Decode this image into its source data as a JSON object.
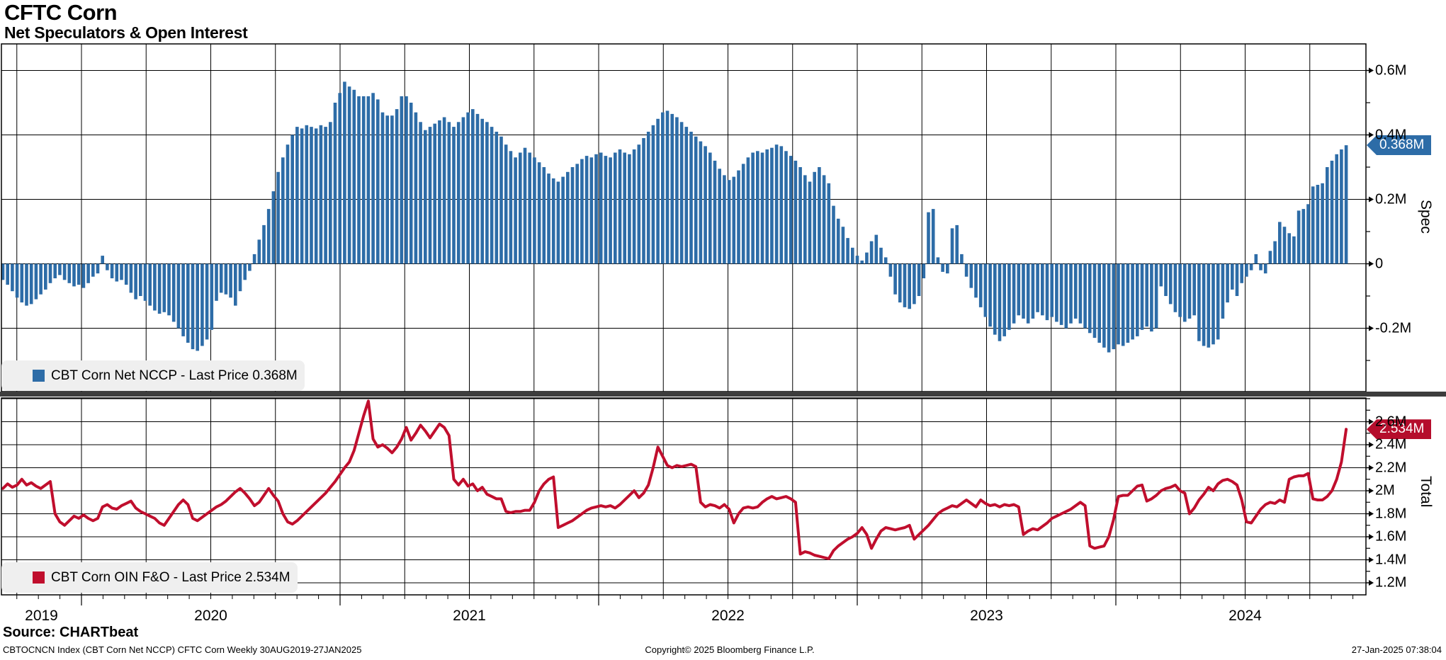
{
  "header": {
    "title": "CFTC Corn",
    "subtitle": "Net Speculators & Open Interest"
  },
  "source_label": "Source: CHARTbeat",
  "footer": {
    "left": "CBTOCNCN Index (CBT Corn Net NCCP) CFTC Corn  Weekly 30AUG2019-27JAN2025",
    "center": "Copyright© 2025 Bloomberg Finance L.P.",
    "right": "27-Jan-2025 07:38:04"
  },
  "colors": {
    "bar_blue": "#2d6ca7",
    "line_red": "#c00e2d",
    "tag_blue": "#2d6ca7",
    "tag_red": "#b50d2c",
    "legend_bg": "#efefef",
    "divider_gray": "#3d3d3d",
    "grid_black": "#000000"
  },
  "x_axis": {
    "years": [
      "2019",
      "2020",
      "2021",
      "2022",
      "2023",
      "2024"
    ],
    "frequency": "Weekly",
    "range": "30AUG2019-27JAN2025"
  },
  "chart_data": [
    {
      "type": "bar",
      "name": "CBT Corn Net NCCP",
      "legend": "CBT Corn Net NCCP - Last Price 0.368M",
      "last_price_tag": "0.368M",
      "ylabel": "Spec",
      "ylim": [
        -0.4,
        0.68
      ],
      "grid": true,
      "ytick_labels": [
        "0.6M",
        "0.4M",
        "0.2M",
        "0",
        "-0.2M"
      ],
      "ytick_values": [
        0.6,
        0.4,
        0.2,
        0,
        -0.2
      ],
      "minor_tick_values": [
        0.5,
        0.3,
        0.1,
        -0.1,
        -0.3
      ],
      "values": [
        -0.05,
        -0.065,
        -0.085,
        -0.105,
        -0.12,
        -0.13,
        -0.125,
        -0.11,
        -0.095,
        -0.08,
        -0.06,
        -0.045,
        -0.035,
        -0.05,
        -0.06,
        -0.07,
        -0.065,
        -0.075,
        -0.06,
        -0.04,
        -0.03,
        0.025,
        -0.02,
        -0.045,
        -0.055,
        -0.05,
        -0.065,
        -0.09,
        -0.11,
        -0.1,
        -0.115,
        -0.13,
        -0.145,
        -0.155,
        -0.15,
        -0.16,
        -0.18,
        -0.2,
        -0.225,
        -0.245,
        -0.265,
        -0.27,
        -0.255,
        -0.235,
        -0.205,
        -0.115,
        -0.09,
        -0.095,
        -0.105,
        -0.13,
        -0.085,
        -0.05,
        -0.022,
        0.03,
        0.075,
        0.12,
        0.17,
        0.225,
        0.285,
        0.33,
        0.37,
        0.4,
        0.425,
        0.42,
        0.43,
        0.425,
        0.42,
        0.43,
        0.425,
        0.44,
        0.5,
        0.53,
        0.565,
        0.55,
        0.54,
        0.52,
        0.52,
        0.52,
        0.53,
        0.51,
        0.47,
        0.46,
        0.46,
        0.48,
        0.52,
        0.52,
        0.5,
        0.47,
        0.44,
        0.415,
        0.425,
        0.435,
        0.445,
        0.455,
        0.44,
        0.425,
        0.44,
        0.455,
        0.47,
        0.48,
        0.465,
        0.45,
        0.44,
        0.425,
        0.41,
        0.395,
        0.37,
        0.35,
        0.33,
        0.345,
        0.36,
        0.345,
        0.33,
        0.315,
        0.3,
        0.28,
        0.265,
        0.255,
        0.27,
        0.285,
        0.3,
        0.31,
        0.325,
        0.335,
        0.33,
        0.34,
        0.345,
        0.335,
        0.33,
        0.345,
        0.355,
        0.345,
        0.34,
        0.355,
        0.37,
        0.39,
        0.41,
        0.43,
        0.45,
        0.47,
        0.475,
        0.465,
        0.455,
        0.44,
        0.425,
        0.41,
        0.395,
        0.38,
        0.365,
        0.345,
        0.32,
        0.295,
        0.275,
        0.26,
        0.27,
        0.29,
        0.31,
        0.33,
        0.345,
        0.35,
        0.345,
        0.355,
        0.36,
        0.37,
        0.365,
        0.35,
        0.335,
        0.32,
        0.3,
        0.275,
        0.255,
        0.285,
        0.3,
        0.275,
        0.25,
        0.18,
        0.14,
        0.115,
        0.08,
        0.05,
        0.025,
        0.01,
        0.035,
        0.07,
        0.09,
        0.05,
        0.02,
        -0.04,
        -0.095,
        -0.12,
        -0.135,
        -0.14,
        -0.125,
        -0.1,
        -0.045,
        0.16,
        0.17,
        0.02,
        -0.025,
        -0.03,
        0.11,
        0.12,
        0.03,
        -0.04,
        -0.075,
        -0.105,
        -0.135,
        -0.165,
        -0.195,
        -0.22,
        -0.24,
        -0.225,
        -0.205,
        -0.185,
        -0.16,
        -0.17,
        -0.185,
        -0.17,
        -0.15,
        -0.16,
        -0.175,
        -0.165,
        -0.18,
        -0.19,
        -0.2,
        -0.185,
        -0.17,
        -0.185,
        -0.2,
        -0.215,
        -0.23,
        -0.245,
        -0.26,
        -0.275,
        -0.265,
        -0.25,
        -0.255,
        -0.245,
        -0.235,
        -0.225,
        -0.205,
        -0.195,
        -0.21,
        -0.2,
        -0.07,
        -0.1,
        -0.125,
        -0.15,
        -0.165,
        -0.18,
        -0.17,
        -0.16,
        -0.24,
        -0.255,
        -0.26,
        -0.25,
        -0.235,
        -0.17,
        -0.12,
        -0.08,
        -0.1,
        -0.06,
        -0.04,
        -0.02,
        0.03,
        -0.02,
        -0.03,
        0.04,
        0.07,
        0.13,
        0.115,
        0.095,
        0.085,
        0.165,
        0.17,
        0.185,
        0.24,
        0.245,
        0.25,
        0.3,
        0.32,
        0.34,
        0.355,
        0.368
      ]
    },
    {
      "type": "line",
      "name": "CBT Corn OIN F&O",
      "legend": "CBT Corn OIN F&O - Last Price 2.534M",
      "last_price_tag": "2.534M",
      "ylabel": "Total",
      "ylim": [
        1.1,
        2.82
      ],
      "grid": true,
      "ytick_labels": [
        "2.6M",
        "2.4M",
        "2.2M",
        "2M",
        "1.8M",
        "1.6M",
        "1.4M",
        "1.2M"
      ],
      "ytick_values": [
        2.6,
        2.4,
        2.2,
        2.0,
        1.8,
        1.6,
        1.4,
        1.2
      ],
      "minor_tick_values": [
        2.8,
        2.7,
        2.5,
        2.3,
        2.1,
        1.9,
        1.7,
        1.5,
        1.3
      ],
      "values": [
        2.02,
        2.06,
        2.03,
        2.05,
        2.1,
        2.05,
        2.07,
        2.04,
        2.02,
        2.05,
        2.08,
        1.8,
        1.73,
        1.7,
        1.74,
        1.78,
        1.76,
        1.79,
        1.76,
        1.74,
        1.76,
        1.86,
        1.88,
        1.85,
        1.84,
        1.87,
        1.89,
        1.91,
        1.85,
        1.82,
        1.8,
        1.78,
        1.76,
        1.72,
        1.7,
        1.76,
        1.82,
        1.88,
        1.92,
        1.88,
        1.76,
        1.74,
        1.77,
        1.8,
        1.83,
        1.86,
        1.88,
        1.91,
        1.95,
        1.99,
        2.02,
        1.98,
        1.93,
        1.87,
        1.9,
        1.96,
        2.02,
        1.96,
        1.91,
        1.8,
        1.73,
        1.71,
        1.74,
        1.78,
        1.82,
        1.86,
        1.9,
        1.94,
        1.98,
        2.03,
        2.08,
        2.14,
        2.2,
        2.25,
        2.35,
        2.5,
        2.65,
        2.78,
        2.45,
        2.38,
        2.4,
        2.37,
        2.33,
        2.38,
        2.45,
        2.55,
        2.44,
        2.5,
        2.57,
        2.52,
        2.46,
        2.52,
        2.58,
        2.55,
        2.48,
        2.1,
        2.05,
        2.1,
        2.04,
        2.06,
        2.0,
        2.03,
        1.97,
        1.95,
        1.93,
        1.93,
        1.82,
        1.81,
        1.82,
        1.82,
        1.83,
        1.83,
        1.9,
        2.0,
        2.06,
        2.1,
        2.12,
        1.68,
        1.7,
        1.72,
        1.74,
        1.77,
        1.8,
        1.83,
        1.85,
        1.86,
        1.87,
        1.86,
        1.87,
        1.85,
        1.88,
        1.92,
        1.96,
        2.0,
        1.94,
        1.98,
        2.05,
        2.2,
        2.38,
        2.3,
        2.22,
        2.2,
        2.22,
        2.21,
        2.22,
        2.23,
        2.21,
        1.9,
        1.86,
        1.88,
        1.87,
        1.85,
        1.88,
        1.84,
        1.72,
        1.8,
        1.85,
        1.86,
        1.85,
        1.86,
        1.9,
        1.93,
        1.95,
        1.93,
        1.94,
        1.95,
        1.93,
        1.9,
        1.45,
        1.47,
        1.46,
        1.44,
        1.43,
        1.42,
        1.41,
        1.48,
        1.52,
        1.55,
        1.58,
        1.6,
        1.63,
        1.68,
        1.62,
        1.5,
        1.58,
        1.65,
        1.68,
        1.67,
        1.66,
        1.67,
        1.68,
        1.7,
        1.58,
        1.62,
        1.66,
        1.7,
        1.75,
        1.8,
        1.83,
        1.85,
        1.87,
        1.86,
        1.89,
        1.92,
        1.89,
        1.86,
        1.92,
        1.89,
        1.87,
        1.88,
        1.86,
        1.88,
        1.87,
        1.88,
        1.86,
        1.62,
        1.65,
        1.67,
        1.66,
        1.69,
        1.72,
        1.76,
        1.78,
        1.8,
        1.82,
        1.84,
        1.87,
        1.9,
        1.87,
        1.52,
        1.5,
        1.51,
        1.52,
        1.6,
        1.75,
        1.95,
        1.96,
        1.96,
        2.0,
        2.04,
        2.05,
        1.91,
        1.93,
        1.96,
        2.0,
        2.02,
        2.03,
        2.05,
        2.0,
        1.98,
        1.8,
        1.85,
        1.92,
        1.97,
        2.03,
        2.0,
        2.06,
        2.09,
        2.1,
        2.08,
        2.05,
        1.92,
        1.73,
        1.72,
        1.78,
        1.84,
        1.88,
        1.9,
        1.89,
        1.92,
        1.9,
        2.1,
        2.12,
        2.13,
        2.13,
        2.15,
        1.93,
        1.92,
        1.92,
        1.95,
        2.0,
        2.1,
        2.25,
        2.534
      ]
    }
  ]
}
